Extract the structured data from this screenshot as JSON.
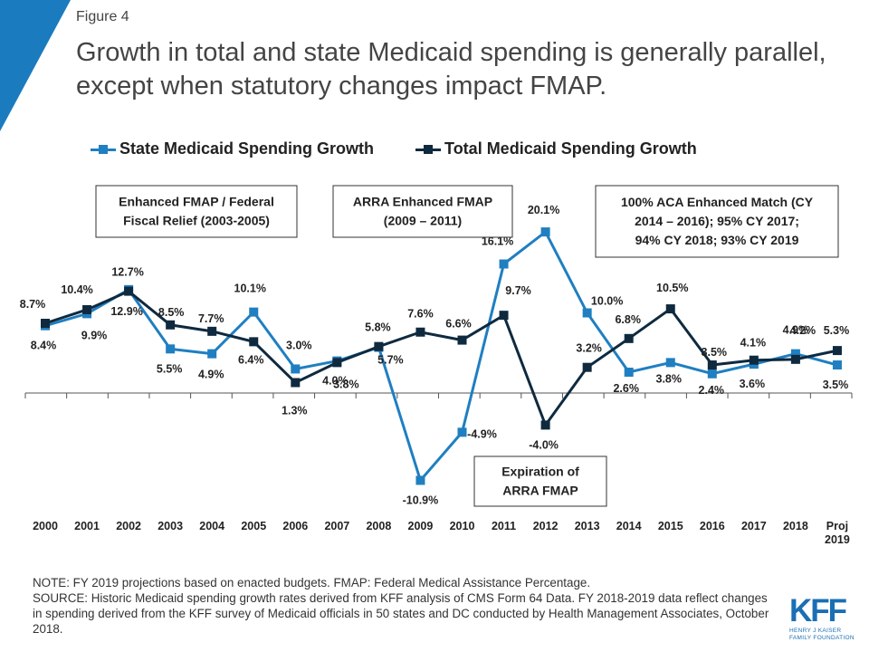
{
  "header": {
    "figure_label": "Figure 4",
    "title": "Growth in total and state Medicaid spending is generally parallel, except when statutory changes impact FMAP."
  },
  "colors": {
    "state": "#1f7fc1",
    "total": "#0f2a3f",
    "accent": "#1a7bbf"
  },
  "chart_data": {
    "type": "line",
    "categories": [
      "2000",
      "2001",
      "2002",
      "2003",
      "2004",
      "2005",
      "2006",
      "2007",
      "2008",
      "2009",
      "2010",
      "2011",
      "2012",
      "2013",
      "2014",
      "2015",
      "2016",
      "2017",
      "2018",
      "Proj 2019"
    ],
    "ylim": [
      -13,
      17
    ],
    "grid": false,
    "legend_position": "top",
    "series": [
      {
        "name": "State Medicaid Spending Growth",
        "color": "#1f7fc1",
        "values": [
          8.4,
          9.9,
          12.9,
          5.5,
          4.9,
          10.1,
          3.0,
          4.0,
          5.7,
          -10.9,
          -4.9,
          16.1,
          20.1,
          10.0,
          2.6,
          3.8,
          2.4,
          3.6,
          4.9,
          3.5
        ],
        "labels": [
          "8.4%",
          "9.9%",
          "12.9%",
          "5.5%",
          "4.9%",
          "10.1%",
          "3.0%",
          "4.0%",
          "5.7%",
          "-10.9%",
          "-4.9%",
          "16.1%",
          "20.1%",
          "10.0%",
          "2.6%",
          "3.8%",
          "2.4%",
          "3.6%",
          "4.9%",
          "3.5%"
        ]
      },
      {
        "name": "Total Medicaid Spending Growth",
        "color": "#0f2a3f",
        "values": [
          8.7,
          10.4,
          12.7,
          8.5,
          7.7,
          6.4,
          1.3,
          3.8,
          5.8,
          7.6,
          6.6,
          9.7,
          -4.0,
          3.2,
          6.8,
          10.5,
          3.5,
          4.1,
          4.2,
          5.3
        ],
        "labels": [
          "8.7%",
          "10.4%",
          "12.7%",
          "8.5%",
          "7.7%",
          "6.4%",
          "1.3%",
          "3.8%",
          "5.8%",
          "7.6%",
          "6.6%",
          "9.7%",
          "-4.0%",
          "3.2%",
          "6.8%",
          "10.5%",
          "3.5%",
          "4.1%",
          "4.2%",
          "5.3%"
        ]
      }
    ],
    "annotations": [
      {
        "lines": [
          "Enhanced FMAP / Federal",
          "Fiscal Relief (2003-2005)"
        ]
      },
      {
        "lines": [
          "ARRA Enhanced FMAP",
          "(2009 – 2011)"
        ]
      },
      {
        "lines": [
          "100% ACA Enhanced Match (CY",
          "2014 – 2016); 95% CY 2017;",
          "94% CY 2018; 93% CY 2019"
        ]
      },
      {
        "lines": [
          "Expiration of",
          "ARRA  FMAP"
        ]
      }
    ]
  },
  "footer": {
    "note": "NOTE: FY 2019 projections based on enacted budgets. FMAP:  Federal Medical Assistance Percentage.",
    "source": "SOURCE: Historic Medicaid spending growth rates derived from KFF analysis of CMS Form 64 Data. FY 2018-2019 data reflect changes in spending derived from the KFF survey of Medicaid officials in 50 states and DC conducted by Health Management Associates, October 2018."
  },
  "logo": {
    "mark": "KFF",
    "line1": "HENRY J KAISER",
    "line2": "FAMILY FOUNDATION"
  }
}
